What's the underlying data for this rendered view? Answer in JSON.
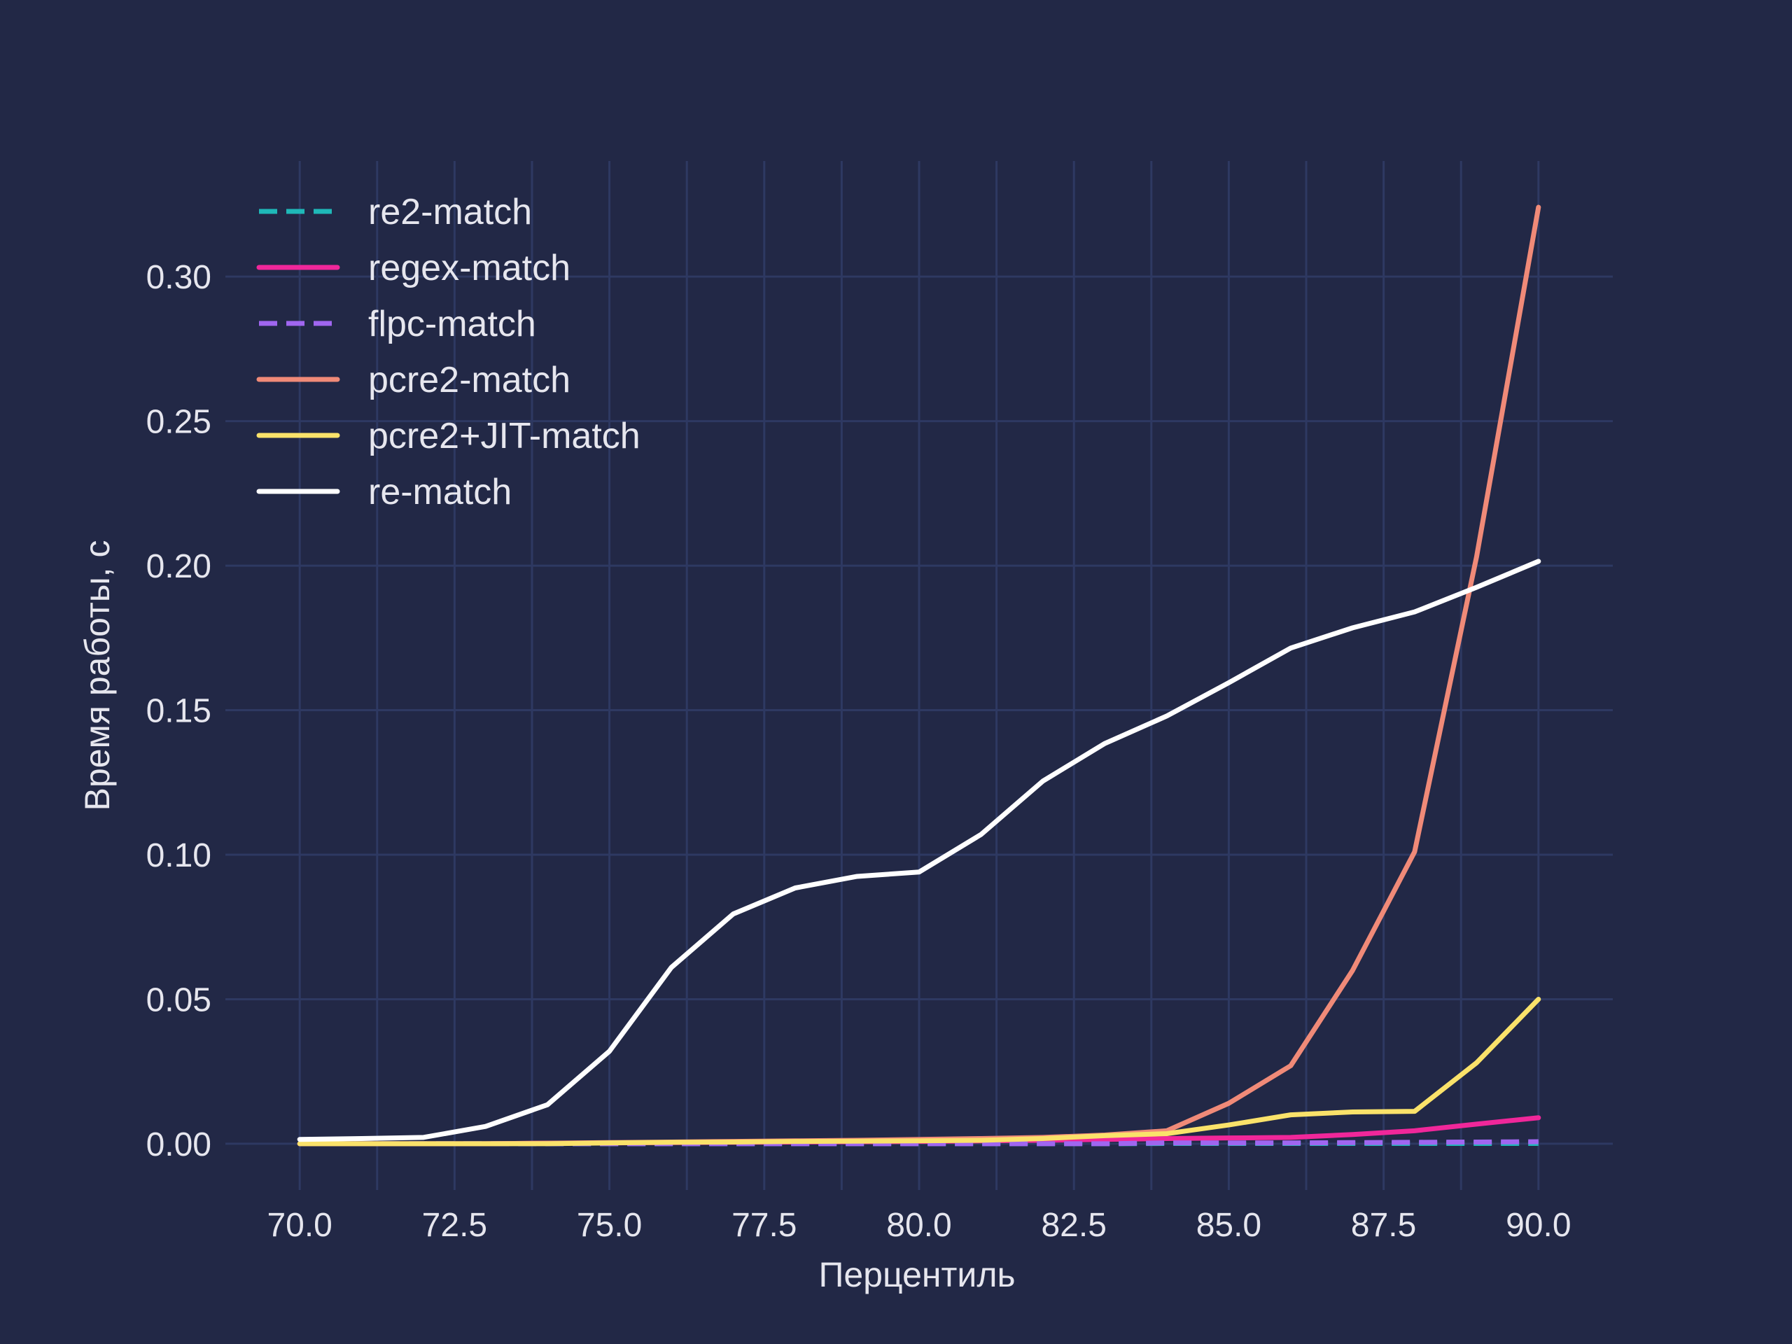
{
  "chart_data": {
    "type": "line",
    "title": "",
    "xlabel": "Перцентиль",
    "ylabel": "Время работы, с",
    "xlim": [
      68.8,
      91.2
    ],
    "ylim": [
      -0.016,
      0.34
    ],
    "grid": true,
    "legend_position": "top-left",
    "xticks": [
      "70.0",
      "72.5",
      "75.0",
      "77.5",
      "80.0",
      "82.5",
      "85.0",
      "87.5",
      "90.0"
    ],
    "yticks": [
      "0.00",
      "0.05",
      "0.10",
      "0.15",
      "0.20",
      "0.25",
      "0.30"
    ],
    "x": [
      70,
      71,
      72,
      73,
      74,
      75,
      76,
      77,
      78,
      79,
      80,
      81,
      82,
      83,
      84,
      85,
      86,
      87,
      88,
      89,
      90
    ],
    "series": [
      {
        "name": "re2-match",
        "color": "#1fb8b8",
        "dash": "dashed",
        "values": [
          0.0,
          0.0,
          0.0,
          0.0,
          0.0,
          0.0,
          0.0,
          0.0,
          0.0,
          0.0,
          0.0,
          0.0,
          0.0,
          0.0,
          0.0001,
          0.0001,
          0.0001,
          0.0001,
          0.0001,
          0.0001,
          0.0001
        ]
      },
      {
        "name": "regex-match",
        "color": "#f0279a",
        "dash": "solid",
        "values": [
          0.0,
          0.0,
          0.0,
          0.0,
          0.0002,
          0.0003,
          0.0004,
          0.0005,
          0.0006,
          0.0007,
          0.0008,
          0.001,
          0.0012,
          0.0015,
          0.0018,
          0.002,
          0.0022,
          0.0032,
          0.0045,
          0.0068,
          0.009
        ]
      },
      {
        "name": "flpc-match",
        "color": "#a066f0",
        "dash": "dashed",
        "values": [
          0.0,
          0.0,
          0.0,
          0.0,
          0.0,
          0.0,
          0.0,
          0.0,
          0.0,
          0.0,
          0.0,
          0.0,
          0.0,
          0.0,
          0.0003,
          0.0003,
          0.0003,
          0.0004,
          0.0005,
          0.0006,
          0.0007
        ]
      },
      {
        "name": "pcre2-match",
        "color": "#f08a78",
        "dash": "solid",
        "values": [
          0.0,
          0.0,
          0.0,
          0.0,
          0.0002,
          0.0004,
          0.0006,
          0.0008,
          0.001,
          0.0012,
          0.0015,
          0.0018,
          0.0022,
          0.003,
          0.0045,
          0.014,
          0.027,
          0.06,
          0.101,
          0.203,
          0.324
        ]
      },
      {
        "name": "pcre2+JIT-match",
        "color": "#fae26a",
        "dash": "solid",
        "values": [
          0.0,
          0.0,
          0.0,
          0.0,
          0.0,
          0.0003,
          0.0005,
          0.0006,
          0.0008,
          0.0009,
          0.001,
          0.0012,
          0.0018,
          0.0028,
          0.0035,
          0.0065,
          0.01,
          0.011,
          0.0112,
          0.028,
          0.05
        ]
      },
      {
        "name": "re-match",
        "color": "#ffffff",
        "dash": "solid",
        "values": [
          0.0015,
          0.0018,
          0.0022,
          0.006,
          0.0135,
          0.032,
          0.061,
          0.0795,
          0.0885,
          0.0925,
          0.094,
          0.107,
          0.1255,
          0.1385,
          0.148,
          0.1595,
          0.1715,
          0.1785,
          0.184,
          0.1925,
          0.2015
        ]
      }
    ]
  }
}
